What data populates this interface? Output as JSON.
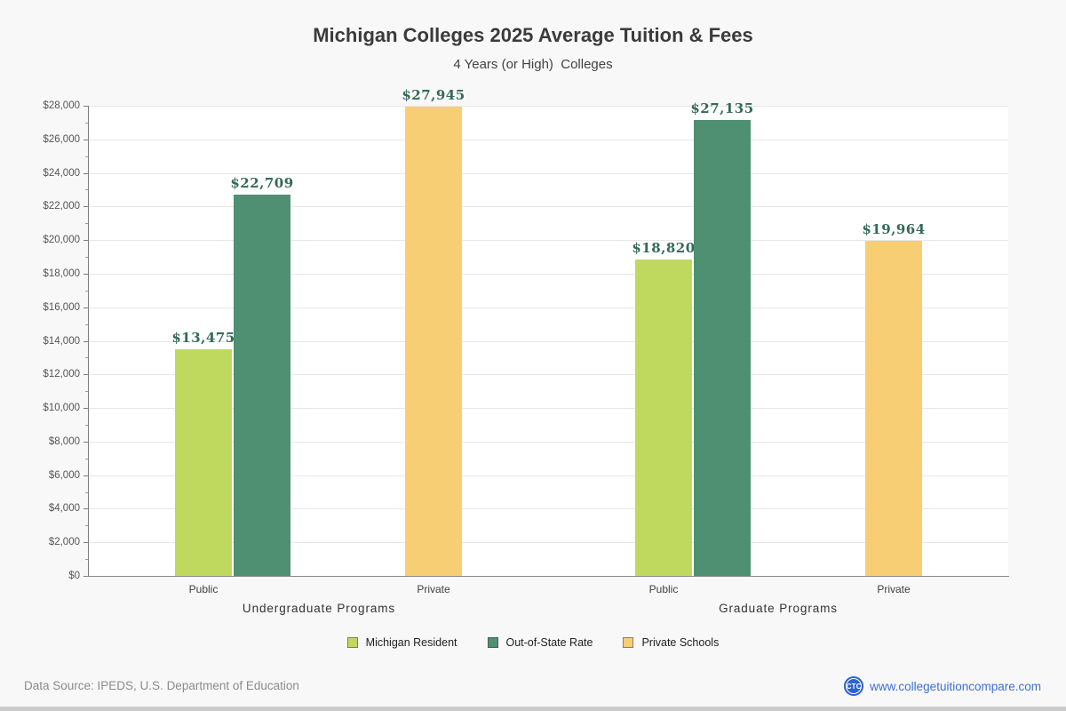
{
  "chart_data": {
    "type": "bar",
    "title": "Michigan Colleges 2025 Average Tuition & Fees",
    "subtitle": "4 Years (or High)  Colleges",
    "ylim": [
      0,
      28000
    ],
    "y_major_step": 2000,
    "y_minor_step": 1000,
    "grid": true,
    "legend_position": "bottom",
    "currency_prefix": "$",
    "groups": [
      {
        "label": "Undergraduate Programs",
        "categories": [
          "Public",
          "Private"
        ]
      },
      {
        "label": "Graduate Programs",
        "categories": [
          "Public",
          "Private"
        ]
      }
    ],
    "series": [
      {
        "name": "Michigan Resident",
        "color": "#bfd95f"
      },
      {
        "name": "Out-of-State Rate",
        "color": "#4e9071"
      },
      {
        "name": "Private Schools",
        "color": "#f8ce75"
      }
    ],
    "bars": [
      {
        "group": 0,
        "category": "Public",
        "series": "Michigan Resident",
        "value": 13475,
        "label": "$13,475"
      },
      {
        "group": 0,
        "category": "Public",
        "series": "Out-of-State Rate",
        "value": 22709,
        "label": "$22,709"
      },
      {
        "group": 0,
        "category": "Private",
        "series": "Private Schools",
        "value": 27945,
        "label": "$27,945"
      },
      {
        "group": 1,
        "category": "Public",
        "series": "Michigan Resident",
        "value": 18820,
        "label": "$18,820"
      },
      {
        "group": 1,
        "category": "Public",
        "series": "Out-of-State Rate",
        "value": 27135,
        "label": "$27,135"
      },
      {
        "group": 1,
        "category": "Private",
        "series": "Private Schools",
        "value": 19964,
        "label": "$19,964"
      }
    ]
  },
  "footer": {
    "source": "Data Source: IPEDS, U.S. Department of Education",
    "website": "www.collegetuitioncompare.com",
    "logo_text": "CTC"
  }
}
